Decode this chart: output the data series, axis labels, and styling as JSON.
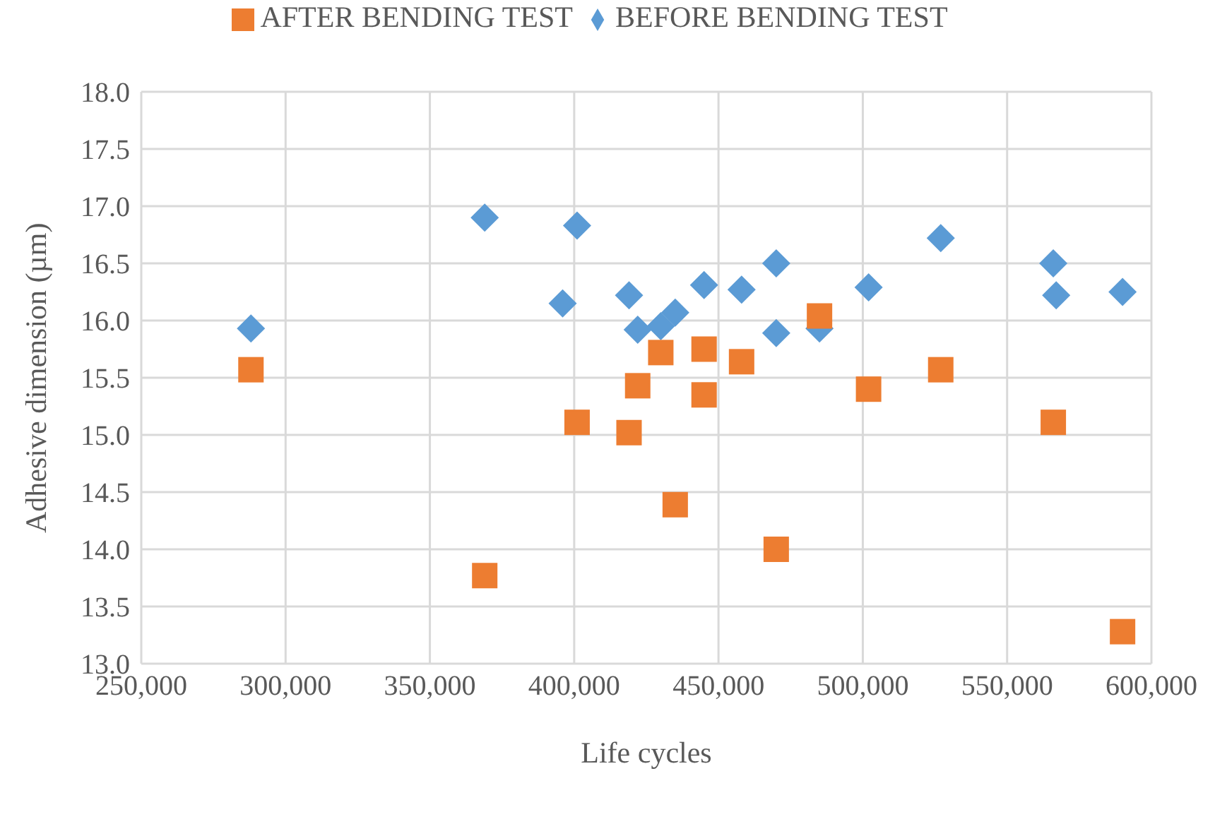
{
  "chart_data": {
    "type": "scatter",
    "xlabel": "Life cycles",
    "ylabel": "Adhesive dimension (µm)",
    "xlim": [
      250000,
      600000
    ],
    "xticks": [
      {
        "value": 250000,
        "label": "250,000"
      },
      {
        "value": 300000,
        "label": "300,000"
      },
      {
        "value": 350000,
        "label": "350,000"
      },
      {
        "value": 400000,
        "label": "400,000"
      },
      {
        "value": 450000,
        "label": "450,000"
      },
      {
        "value": 500000,
        "label": "500,000"
      },
      {
        "value": 550000,
        "label": "550,000"
      },
      {
        "value": 600000,
        "label": "600,000"
      }
    ],
    "ylim": [
      13,
      18
    ],
    "yticks": [
      {
        "value": 13,
        "label": "13.0"
      },
      {
        "value": 13.5,
        "label": "13.5"
      },
      {
        "value": 14,
        "label": "14.0"
      },
      {
        "value": 14.5,
        "label": "14.5"
      },
      {
        "value": 15,
        "label": "15.0"
      },
      {
        "value": 15.5,
        "label": "15.5"
      },
      {
        "value": 16,
        "label": "16.0"
      },
      {
        "value": 16.5,
        "label": "16.5"
      },
      {
        "value": 17,
        "label": "17.0"
      },
      {
        "value": 17.5,
        "label": "17.5"
      },
      {
        "value": 18,
        "label": "18.0"
      }
    ],
    "grid": true,
    "legend": "top",
    "series": [
      {
        "name": "BEFORE BENDING TEST",
        "color": "#5b9bd5",
        "marker": "diamond",
        "x": [
          288000,
          369000,
          401000,
          396000,
          419000,
          422000,
          430000,
          435000,
          445000,
          458000,
          470000,
          470000,
          485000,
          502000,
          527000,
          566000,
          567000,
          590000
        ],
        "values": [
          15.93,
          16.9,
          16.83,
          16.15,
          16.22,
          15.92,
          15.95,
          16.07,
          16.31,
          16.27,
          16.5,
          15.89,
          15.93,
          16.29,
          16.72,
          16.5,
          16.22,
          16.25
        ]
      },
      {
        "name": "AFTER BENDING TEST",
        "color": "#ed7d31",
        "marker": "square",
        "x": [
          288000,
          369000,
          401000,
          419000,
          422000,
          430000,
          435000,
          445000,
          445000,
          458000,
          470000,
          485000,
          502000,
          527000,
          566000,
          590000
        ],
        "values": [
          15.57,
          13.77,
          15.11,
          15.02,
          15.43,
          15.72,
          14.39,
          15.75,
          15.35,
          15.64,
          14.0,
          16.04,
          15.4,
          15.57,
          15.11,
          13.28
        ]
      }
    ]
  }
}
